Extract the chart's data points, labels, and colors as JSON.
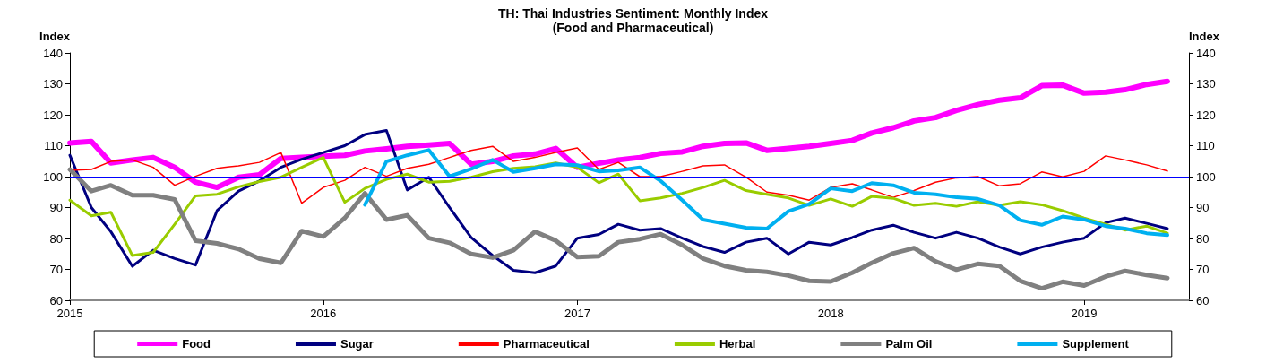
{
  "chart_data": {
    "type": "line",
    "title": "TH: Thai Industries Sentiment: Monthly Index\n(Food and Pharmaceutical)",
    "ylabel": "Index",
    "y2label": "Index",
    "x": [
      "2015-01",
      "2015-02",
      "2015-03",
      "2015-04",
      "2015-05",
      "2015-06",
      "2015-07",
      "2015-08",
      "2015-09",
      "2015-10",
      "2015-11",
      "2015-12",
      "2016-01",
      "2016-02",
      "2016-03",
      "2016-04",
      "2016-05",
      "2016-06",
      "2016-07",
      "2016-08",
      "2016-09",
      "2016-10",
      "2016-11",
      "2016-12",
      "2017-01",
      "2017-02",
      "2017-03",
      "2017-04",
      "2017-05",
      "2017-06",
      "2017-07",
      "2017-08",
      "2017-09",
      "2017-10",
      "2017-11",
      "2017-12",
      "2018-01",
      "2018-02",
      "2018-03",
      "2018-04",
      "2018-05",
      "2018-06",
      "2018-07",
      "2018-08",
      "2018-09",
      "2018-10",
      "2018-11",
      "2018-12",
      "2019-01",
      "2019-02",
      "2019-03",
      "2019-04",
      "2019-05"
    ],
    "xlim": [
      "2015-01",
      "2019-06"
    ],
    "xticks": [
      "2015",
      "2016",
      "2017",
      "2018",
      "2019"
    ],
    "ylim": [
      60,
      140
    ],
    "yticks": [
      60,
      70,
      80,
      90,
      100,
      110,
      120,
      130,
      140
    ],
    "y2lim": [
      60,
      140
    ],
    "y2ticks": [
      60,
      70,
      80,
      90,
      100,
      110,
      120,
      130,
      140
    ],
    "grid": false,
    "legend": "bottom",
    "marker": "none",
    "line_style": "solid",
    "ref_lines": [
      {
        "axis": "y",
        "value": 100,
        "color": "#0000ff"
      }
    ],
    "series": [
      {
        "name": "Food",
        "color": "#ff00ff",
        "values": [
          110.9,
          111.4,
          104.4,
          105.4,
          106.2,
          103,
          98.2,
          96.5,
          99.8,
          100.6,
          105.9,
          106.2,
          106.6,
          106.9,
          108.3,
          109,
          109.8,
          110.2,
          110.7,
          104,
          104.9,
          106.7,
          107.3,
          109.1,
          103,
          104.3,
          105.4,
          106.2,
          107.5,
          108,
          109.8,
          110.7,
          110.9,
          108.5,
          109.1,
          109.8,
          110.7,
          111.7,
          114.1,
          115.8,
          118,
          119.1,
          121.4,
          123.3,
          124.7,
          125.5,
          129.4,
          129.6,
          127,
          127.3,
          128.1,
          129.8,
          130.8
        ]
      },
      {
        "name": "Sugar",
        "color": "#000080",
        "values": [
          106.9,
          90,
          82.2,
          71,
          76.2,
          73.5,
          71.4,
          89,
          95.3,
          98.6,
          103,
          105.6,
          107.8,
          110,
          113.6,
          114.9,
          95.7,
          99.8,
          90,
          80.3,
          74.5,
          69.7,
          68.9,
          71.1,
          80.1,
          81.3,
          84.6,
          82.7,
          83.2,
          80.1,
          77.4,
          75.5,
          78.8,
          80.1,
          75,
          78.8,
          77.9,
          80.3,
          82.7,
          84.3,
          82,
          80.1,
          82,
          80.1,
          77.2,
          75,
          77.2,
          78.8,
          80.1,
          85.1,
          86.6,
          84.9,
          83.2
        ]
      },
      {
        "name": "Pharmaceutical",
        "color": "#ff0000",
        "values": [
          102,
          102.3,
          104.9,
          105.4,
          103,
          97.2,
          100.1,
          102.7,
          103.5,
          104.6,
          107.8,
          91.4,
          96.5,
          98.8,
          103,
          100.1,
          102.7,
          104,
          106.2,
          108.5,
          109.8,
          104.9,
          106.2,
          107.8,
          109.3,
          102.3,
          104.6,
          100,
          100,
          101.7,
          103.5,
          103.8,
          99.8,
          95,
          94,
          92.4,
          96.5,
          97.7,
          95.7,
          93.3,
          95.5,
          98.2,
          99.6,
          100,
          97,
          97.7,
          101.5,
          99.9,
          101.7,
          106.7,
          105.4,
          103.8,
          101.8
        ]
      },
      {
        "name": "Herbal",
        "color": "#99cc00",
        "values": [
          92.4,
          87.3,
          88.5,
          74.5,
          75.5,
          84.6,
          93.8,
          94.3,
          96.7,
          98.4,
          99.8,
          103,
          106.2,
          91.7,
          96.2,
          99.1,
          100.8,
          98.2,
          98.5,
          99.8,
          101.6,
          102.7,
          103.2,
          104.4,
          103,
          98,
          100.8,
          92.2,
          93.1,
          94.6,
          96.5,
          98.8,
          95.5,
          94.3,
          93.1,
          90.7,
          92.8,
          90.4,
          93.6,
          93,
          90.7,
          91.4,
          90.4,
          91.9,
          90.7,
          91.9,
          90.9,
          89,
          86.6,
          84.6,
          82.7,
          84,
          81.7
        ]
      },
      {
        "name": "Palm Oil",
        "color": "#808080",
        "values": [
          102.3,
          95.3,
          97.2,
          94,
          94,
          92.6,
          79.3,
          78.4,
          76.6,
          73.5,
          72.1,
          82.4,
          80.6,
          86.6,
          94.6,
          86.1,
          87.5,
          80.1,
          78.6,
          75,
          73.8,
          76.2,
          82.2,
          79.3,
          74,
          74.3,
          78.8,
          79.8,
          81.4,
          77.9,
          73.5,
          71.1,
          69.7,
          69.2,
          68,
          66.3,
          66.1,
          68.9,
          72.1,
          75.2,
          76.9,
          72.6,
          69.9,
          71.8,
          71.1,
          66.3,
          63.9,
          66,
          64.8,
          67.7,
          69.5,
          68.2,
          67.2
        ]
      },
      {
        "name": "Supplement",
        "color": "#00b0f0",
        "values": [
          null,
          null,
          null,
          null,
          null,
          null,
          null,
          null,
          null,
          null,
          null,
          null,
          null,
          null,
          90.9,
          104.9,
          106.9,
          108.6,
          100.1,
          102.5,
          105.4,
          101.5,
          102.7,
          104,
          103.7,
          101.7,
          102,
          103,
          98.6,
          92.4,
          86.1,
          84.8,
          83.5,
          83.2,
          88.8,
          91.1,
          96.2,
          95.3,
          97.9,
          97.2,
          94.8,
          94.3,
          93.3,
          92.8,
          90.7,
          85.9,
          84.4,
          87.1,
          86.1,
          84,
          83.2,
          81.7,
          81.1
        ]
      }
    ]
  }
}
